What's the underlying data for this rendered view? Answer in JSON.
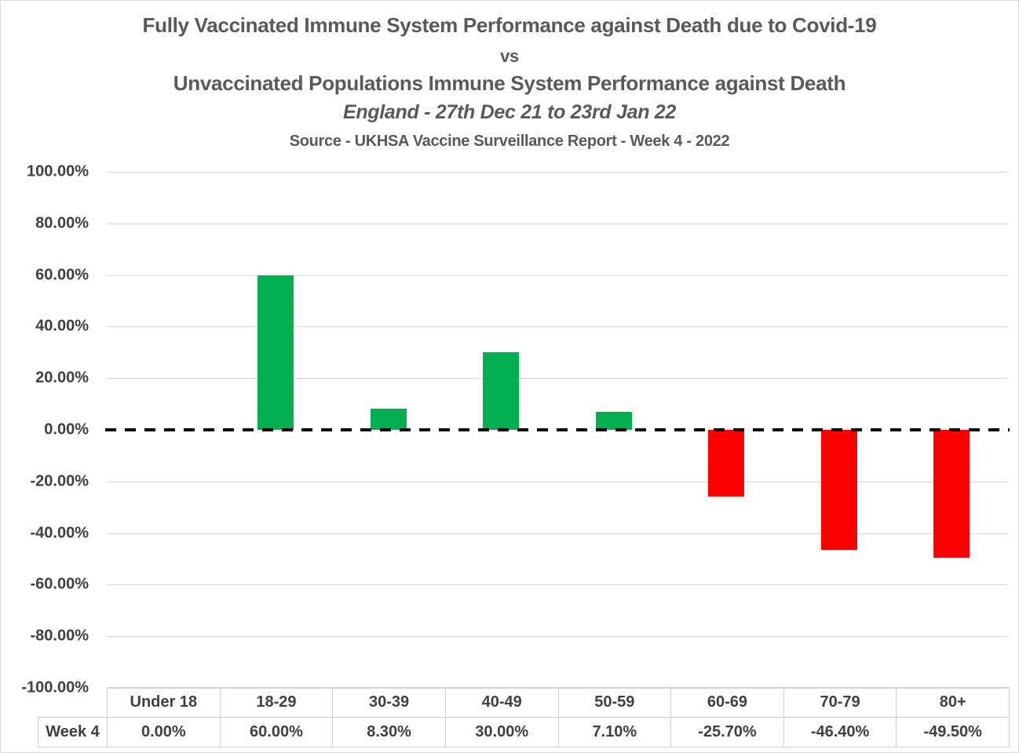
{
  "title": {
    "line1": "Fully Vaccinated Immune System Performance against Death due to Covid-19",
    "line2": "vs",
    "line3": "Unvaccinated Populations Immune System Performance against Death",
    "line4": "England - 27th Dec 21 to 23rd Jan 22",
    "line5": "Source - UKHSA Vaccine Surveillance Report - Week 4 - 2022"
  },
  "chart_data": {
    "type": "bar",
    "title": "Fully Vaccinated Immune System Performance against Death due to Covid-19 vs Unvaccinated Populations Immune System Performance against Death",
    "subtitle": "England - 27th Dec 21 to 23rd Jan 22",
    "source": "Source - UKHSA Vaccine Surveillance Report - Week 4 - 2022",
    "categories": [
      "Under 18",
      "18-29",
      "30-39",
      "40-49",
      "50-59",
      "60-69",
      "70-79",
      "80+"
    ],
    "series": [
      {
        "name": "Week 4",
        "values": [
          0.0,
          60.0,
          8.3,
          30.0,
          7.1,
          -25.7,
          -46.4,
          -49.5
        ]
      }
    ],
    "xlabel": "",
    "ylabel": "",
    "ylim": [
      -100,
      100
    ],
    "ytick_step": 20,
    "ytick_values": [
      100,
      80,
      60,
      40,
      20,
      0,
      -20,
      -40,
      -60,
      -80,
      -100
    ],
    "ytick_labels": [
      "100.00%",
      "80.00%",
      "60.00%",
      "40.00%",
      "20.00%",
      "0.00%",
      "-20.00%",
      "-40.00%",
      "-60.00%",
      "-80.00%",
      "-100.00%"
    ],
    "grid": true,
    "legend_position": "none",
    "zero_line_style": "thick-black-dashed",
    "colors": {
      "positive": "#00B050",
      "negative": "#FF0000",
      "gridline": "#D9D9D9",
      "zero_line": "#000000",
      "axis_text": "#404040",
      "title_text": "#595959",
      "table_border": "#CFCFCF"
    }
  },
  "table": {
    "row_label": "Week 4",
    "headers": [
      "Under 18",
      "18-29",
      "30-39",
      "40-49",
      "50-59",
      "60-69",
      "70-79",
      "80+"
    ],
    "values": [
      "0.00%",
      "60.00%",
      "8.30%",
      "30.00%",
      "7.10%",
      "-25.70%",
      "-46.40%",
      "-49.50%"
    ]
  }
}
